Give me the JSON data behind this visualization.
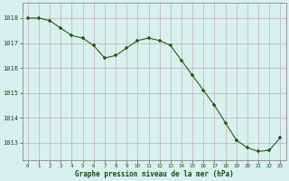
{
  "hours": [
    0,
    1,
    2,
    3,
    4,
    5,
    6,
    7,
    8,
    9,
    10,
    11,
    12,
    13,
    14,
    15,
    16,
    17,
    18,
    19,
    20,
    21,
    22,
    23
  ],
  "pressure": [
    1018.0,
    1018.0,
    1017.9,
    1017.6,
    1017.3,
    1017.2,
    1016.9,
    1016.4,
    1016.5,
    1016.8,
    1017.1,
    1017.2,
    1017.1,
    1016.9,
    1016.3,
    1015.7,
    1015.1,
    1014.5,
    1013.8,
    1013.1,
    1012.8,
    1012.65,
    1012.7,
    1013.2
  ],
  "line_color": "#2d5a1e",
  "marker": "+",
  "bg_color": "#d8f0ee",
  "grid_color": "#c8b8c8",
  "tick_color": "#2d5a1e",
  "label_color": "#1a4a1a",
  "xlabel": "Graphe pression niveau de la mer (hPa)",
  "yticks": [
    1013,
    1014,
    1015,
    1016,
    1017,
    1018
  ],
  "ylim": [
    1012.3,
    1018.6
  ],
  "xlim": [
    -0.5,
    23.5
  ]
}
